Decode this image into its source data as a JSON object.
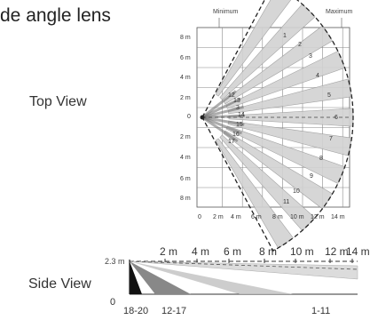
{
  "heading": "de angle lens",
  "top_view": {
    "label": "Top View",
    "range_labels": [
      "Minimum",
      "Maximum"
    ],
    "y_ticks": [
      "8 m",
      "6 m",
      "4 m",
      "2 m",
      "0",
      "2 m",
      "4 m",
      "6 m",
      "8 m"
    ],
    "x_ticks": [
      "0",
      "2 m",
      "4 m",
      "6 m",
      "8 m",
      "10 m",
      "12 m",
      "14 m"
    ],
    "zone_numbers": [
      "1",
      "2",
      "3",
      "4",
      "5",
      "6",
      "7",
      "8",
      "9",
      "10",
      "11",
      "12",
      "13",
      "3",
      "14",
      "15",
      "16",
      "17"
    ]
  },
  "side_view": {
    "label": "Side View",
    "height_label": "2.3 m",
    "distance_ticks": [
      "2 m",
      "4 m",
      "6 m",
      "8 m",
      "10 m",
      "12 m",
      "14 m"
    ],
    "zone_groups": [
      "0",
      "18-20",
      "12-17",
      "1-11"
    ]
  }
}
